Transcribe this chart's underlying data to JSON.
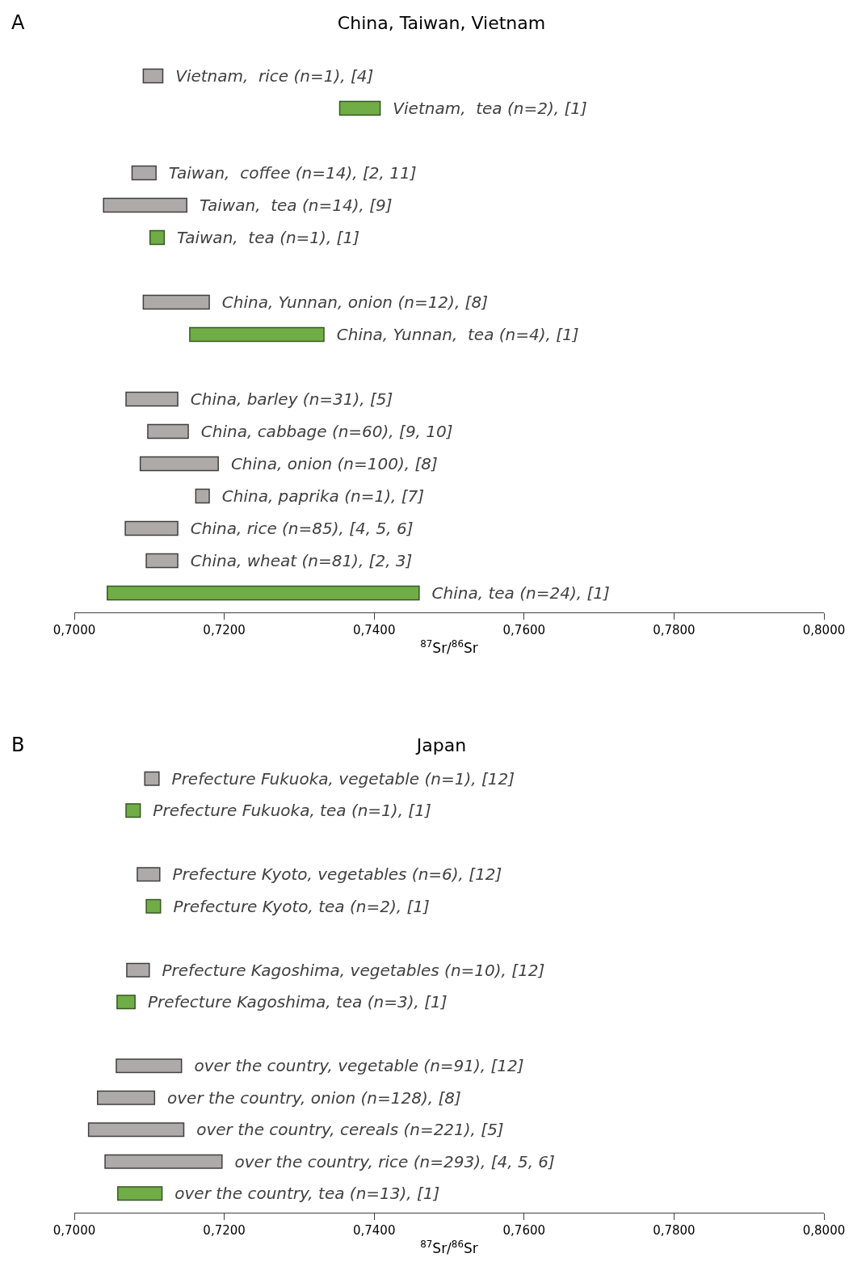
{
  "chart_data": [
    {
      "type": "bar",
      "orientation": "horizontal",
      "title": "China, Taiwan, Vietnam",
      "xlabel": "$^{87}$Sr/$^{86}$Sr",
      "annotations": [
        "A"
      ],
      "categories": [
        "Vietnam,  rice (n=1), [4]",
        "Vietnam,  tea (n=2), [1]",
        null,
        "Taiwan,  coffee (n=14), [2, 11]",
        "Taiwan,  tea (n=14), [9]",
        "Taiwan,  tea (n=1), [1]",
        null,
        "China, Yunnan, onion (n=12), [8]",
        "China, Yunnan,  tea (n=4), [1]",
        null,
        "China, barley (n=31), [5]",
        "China, cabbage (n=60), [9, 10]",
        "China, onion (n=100), [8]",
        "China, paprika (n=1), [7]",
        "China, rice (n=85), [4, 5, 6]",
        "China, wheat (n=81), [2, 3]",
        "China, tea (n=24), [1]"
      ],
      "base": [
        0.7092,
        0.7354,
        null,
        0.7077,
        0.7039,
        0.7101,
        null,
        0.7092,
        0.7154,
        null,
        0.7069,
        0.7098,
        0.7088,
        0.7162,
        0.7068,
        0.7096,
        0.7044
      ],
      "values": [
        0.0026,
        0.0054,
        null,
        0.0032,
        0.0111,
        0.0019,
        null,
        0.0088,
        0.0179,
        null,
        0.0069,
        0.0054,
        0.0104,
        0.0018,
        0.007,
        0.0042,
        0.0416
      ],
      "colors": [
        "#aeaaaa",
        "#70ad47",
        null,
        "#aeaaaa",
        "#aeaaaa",
        "#70ad47",
        null,
        "#aeaaaa",
        "#70ad47",
        null,
        "#aeaaaa",
        "#aeaaaa",
        "#aeaaaa",
        "#aeaaaa",
        "#aeaaaa",
        "#aeaaaa",
        "#70ad47"
      ],
      "xlim": [
        0.7,
        0.8
      ],
      "xticks": [
        {
          "value": 0.7,
          "label": "0,7000"
        },
        {
          "value": 0.72,
          "label": "0,7200"
        },
        {
          "value": 0.74,
          "label": "0,7400"
        },
        {
          "value": 0.76,
          "label": "0,7600"
        },
        {
          "value": 0.78,
          "label": "0,7800"
        },
        {
          "value": 0.8,
          "label": "0,8000"
        }
      ],
      "tick_labels": "x",
      "grid": false
    },
    {
      "type": "bar",
      "orientation": "horizontal",
      "title": "Japan",
      "xlabel": "$^{87}$Sr/$^{86}$Sr",
      "annotations": [
        "B"
      ],
      "categories": [
        "Prefecture Fukuoka, vegetable (n=1), [12]",
        "Prefecture Fukuoka, tea (n=1), [1]",
        null,
        "Prefecture Kyoto, vegetables (n=6), [12]",
        "Prefecture Kyoto, tea (n=2), [1]",
        null,
        "Prefecture Kagoshima, vegetables (n=10), [12]",
        "Prefecture Kagoshima, tea (n=3), [1]",
        null,
        "over the country, vegetable (n=91), [12]",
        "over the country, onion (n=128), [8]",
        "over the country, cereals (n=221), [5]",
        "over the country, rice (n=293), [4, 5, 6]",
        "over the country, tea (n=13), [1]"
      ],
      "base": [
        0.7094,
        0.7069,
        null,
        0.7084,
        0.7096,
        null,
        0.707,
        0.7057,
        null,
        0.7056,
        0.7031,
        0.7019,
        0.7041,
        0.7058
      ],
      "values": [
        0.0019,
        0.0019,
        null,
        0.003,
        0.0019,
        null,
        0.003,
        0.0024,
        null,
        0.0087,
        0.0076,
        0.0127,
        0.0156,
        0.0059
      ],
      "colors": [
        "#aeaaaa",
        "#70ad47",
        null,
        "#aeaaaa",
        "#70ad47",
        null,
        "#aeaaaa",
        "#70ad47",
        null,
        "#aeaaaa",
        "#aeaaaa",
        "#aeaaaa",
        "#aeaaaa",
        "#70ad47"
      ],
      "xlim": [
        0.7,
        0.8
      ],
      "xticks": [
        {
          "value": 0.7,
          "label": "0,7000"
        },
        {
          "value": 0.72,
          "label": "0,7200"
        },
        {
          "value": 0.74,
          "label": "0,7400"
        },
        {
          "value": 0.76,
          "label": "0,7600"
        },
        {
          "value": 0.78,
          "label": "0,7800"
        },
        {
          "value": 0.8,
          "label": "0,8000"
        }
      ],
      "tick_labels": "x",
      "grid": false
    }
  ]
}
